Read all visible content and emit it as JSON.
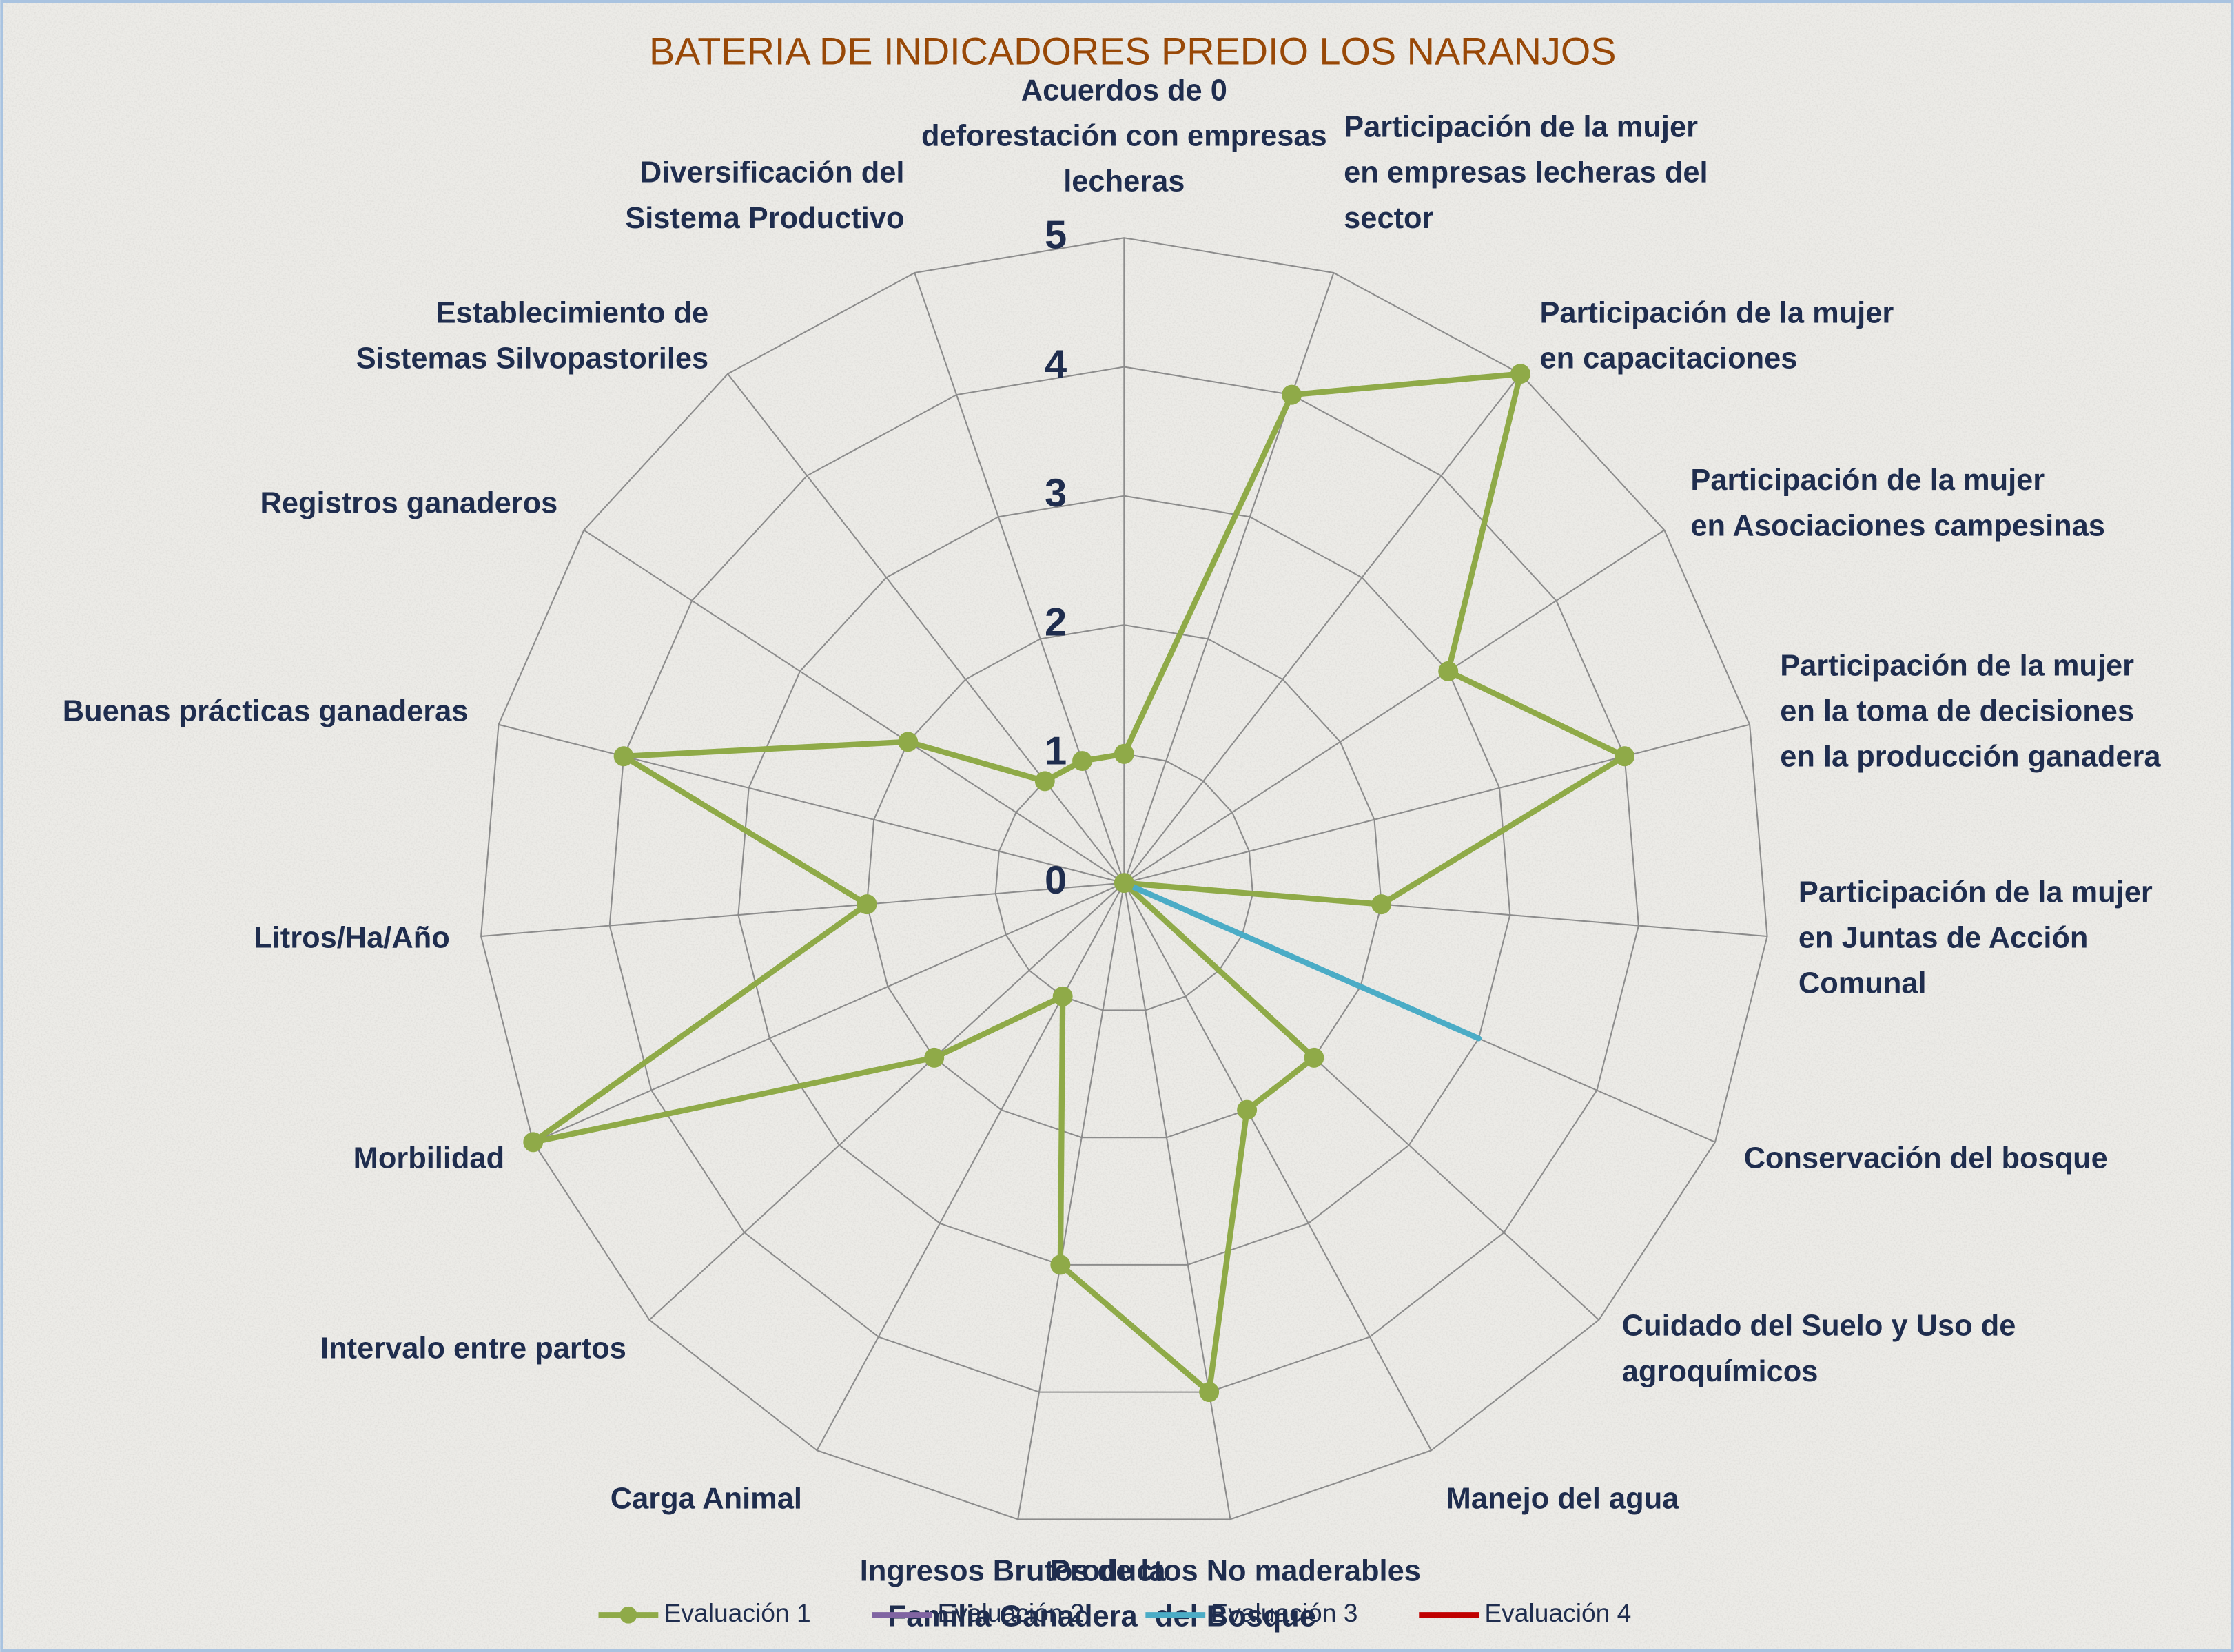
{
  "chart_data": {
    "type": "radar",
    "title": "BATERIA DE INDICADORES PREDIO LOS NARANJOS",
    "categories": [
      "Acuerdos de 0 deforestación con empresas lecheras",
      "Participación de la mujer en empresas lecheras del sector",
      "Participación de la mujer en capacitaciones",
      "Participación de la mujer en Asociaciones campesinas",
      "Participación de la mujer en la toma de decisiones en la producción ganadera",
      "Participación de la mujer en Juntas de Acción Comunal",
      "Conservación del bosque",
      "Cuidado del Suelo y Uso de agroquímicos",
      "Manejo del agua",
      "Productos No maderables del Bosque",
      "Ingresos Brutos de la Familia Ganadera",
      "Carga Animal",
      "Intervalo entre partos",
      "Morbilidad",
      "Litros/Ha/Año",
      "Buenas prácticas ganaderas",
      "Registros ganaderos",
      "Establecimiento de Sistemas Silvopastoriles",
      "Diversificación del Sistema Productivo"
    ],
    "series": [
      {
        "name": "Evaluación 1",
        "color": "#8faa48",
        "markers": true,
        "values": [
          1,
          4,
          5,
          3,
          4,
          2,
          0,
          2,
          2,
          4,
          3,
          1,
          2,
          5,
          2,
          4,
          2,
          1,
          1
        ]
      },
      {
        "name": "Evaluación 2",
        "color": "#8064a2",
        "markers": false,
        "values": [
          0,
          0,
          0,
          0,
          0,
          0,
          0,
          0,
          0,
          0,
          0,
          0,
          0,
          0,
          0,
          0,
          0,
          0,
          0
        ]
      },
      {
        "name": "Evaluación 3",
        "color": "#4bacc6",
        "markers": false,
        "values": [
          0,
          0,
          0,
          0,
          0,
          0,
          3,
          0,
          0,
          0,
          0,
          0,
          0,
          0,
          0,
          0,
          0,
          0,
          0
        ]
      },
      {
        "name": "Evaluación 4",
        "color": "#c00000",
        "markers": false,
        "values": [
          0,
          0,
          0,
          0,
          0,
          0,
          0,
          0,
          0,
          0,
          0,
          0,
          0,
          0,
          0,
          0,
          0,
          0,
          0
        ]
      }
    ],
    "ylim": [
      0,
      5
    ],
    "yticks": [
      0,
      1,
      2,
      3,
      4,
      5
    ],
    "grid": true,
    "legend": "bottom"
  }
}
